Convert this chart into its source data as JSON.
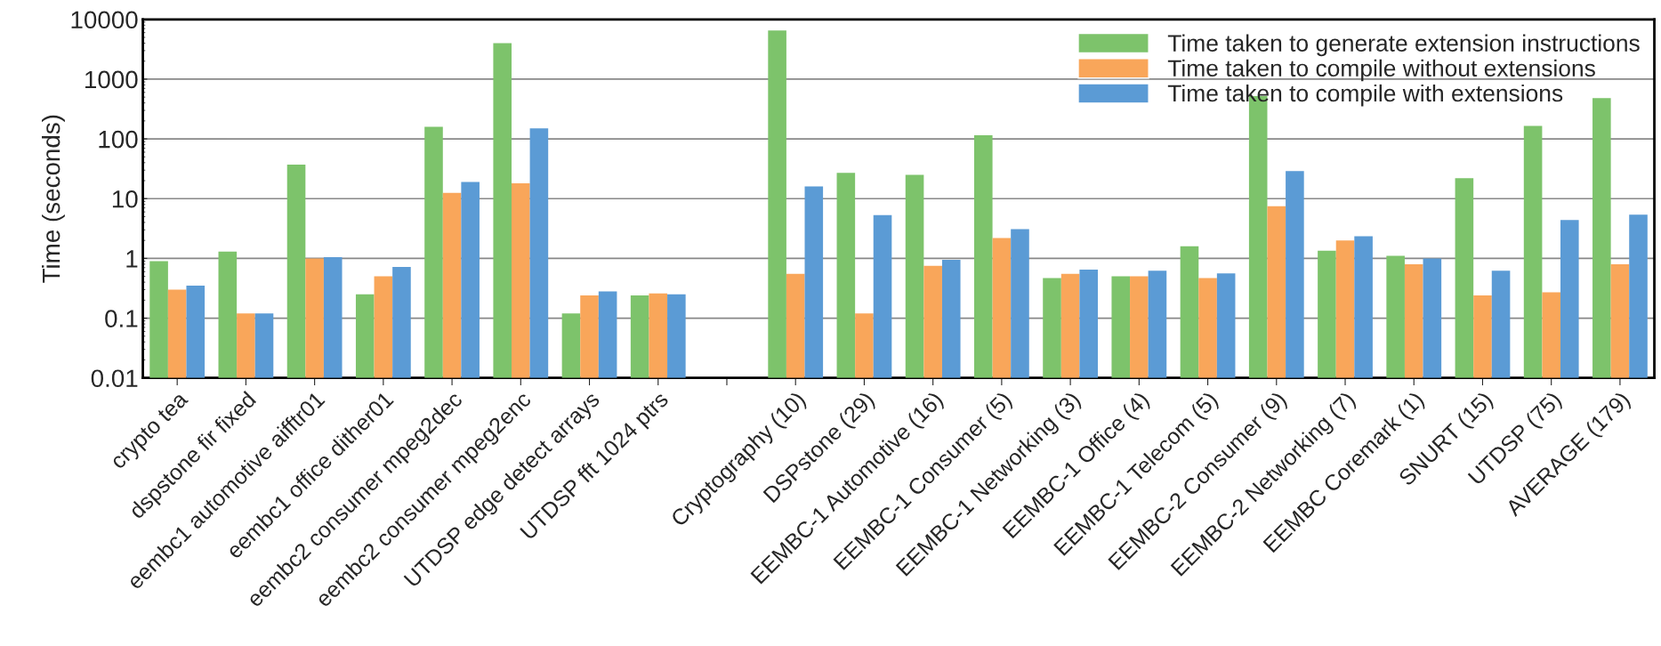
{
  "chart_data": {
    "type": "bar",
    "ylabel": "Time (seconds)",
    "log": true,
    "grid": "y",
    "legend": "top right",
    "categories": [
      "crypto tea",
      "dspstone fir fixed",
      "eembc1 automotive aifftr01",
      "eembc1 office dither01",
      "eembc2 consumer mpeg2dec",
      "eembc2 consumer mpeg2enc",
      "UTDSP edge detect arrays",
      "UTDSP fft 1024 ptrs",
      null,
      "Cryptography (10)",
      "DSPstone (29)",
      "EEMBC-1 Automotive (16)",
      "EEMBC-1 Consumer (5)",
      "EEMBC-1 Networking (3)",
      "EEMBC-1 Office (4)",
      "EEMBC-1 Telecom (5)",
      "EEMBC-2 Consumer (9)",
      "EEMBC-2 Networking (7)",
      "EEMBC Coremark (1)",
      "SNURT (15)",
      "UTDSP (75)",
      "AVERAGE (179)"
    ],
    "ylim": [
      0.01,
      10000
    ],
    "yticks": [
      {
        "value": 0.01,
        "label": "0.01"
      },
      {
        "value": 0.1,
        "label": "0.1"
      },
      1,
      10,
      100,
      1000,
      10000
    ],
    "series": [
      {
        "name": "Time taken to generate extension instructions",
        "color": "#7dc36b",
        "values": [
          0.9,
          1.3,
          37,
          0.25,
          160,
          4000,
          0.12,
          0.24,
          null,
          6500,
          27,
          25,
          115,
          0.47,
          0.5,
          1.6,
          520,
          1.35,
          1.1,
          22,
          165,
          480
        ]
      },
      {
        "name": "Time taken to compile without extensions",
        "color": "#f9a65a",
        "values": [
          0.3,
          0.12,
          1.0,
          0.5,
          12.5,
          18,
          0.24,
          0.26,
          null,
          0.55,
          0.12,
          0.75,
          2.2,
          0.55,
          0.5,
          0.47,
          7.5,
          2.0,
          0.8,
          0.24,
          0.27,
          0.8
        ]
      },
      {
        "name": "Time taken to compile with extensions",
        "color": "#5b9bd5",
        "values": [
          0.35,
          0.12,
          1.05,
          0.72,
          19,
          150,
          0.28,
          0.25,
          null,
          16,
          5.3,
          0.95,
          3.1,
          0.65,
          0.62,
          0.56,
          29,
          2.35,
          1.0,
          0.62,
          4.4,
          5.4
        ]
      }
    ]
  }
}
